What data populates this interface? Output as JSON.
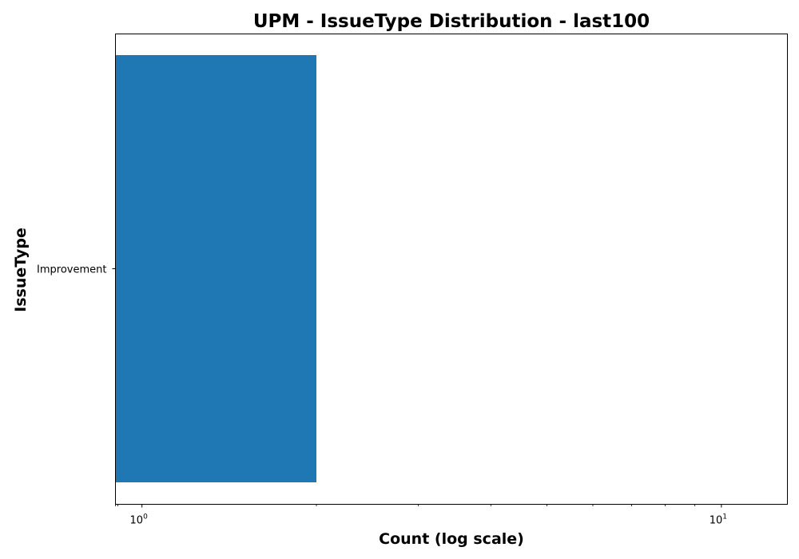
{
  "chart_data": {
    "type": "bar",
    "orientation": "horizontal",
    "title": "UPM - IssueType Distribution - last100",
    "xlabel": "Count (log scale)",
    "ylabel": "IssueType",
    "x_scale": "log",
    "xlim": [
      0.9,
      13
    ],
    "categories": [
      "Improvement"
    ],
    "values": [
      2
    ],
    "x_ticks": [
      {
        "value": 1,
        "base": "10",
        "exp": "0"
      },
      {
        "value": 10,
        "base": "10",
        "exp": "1"
      }
    ],
    "grid": false,
    "bar_color": "#1f77b4"
  }
}
